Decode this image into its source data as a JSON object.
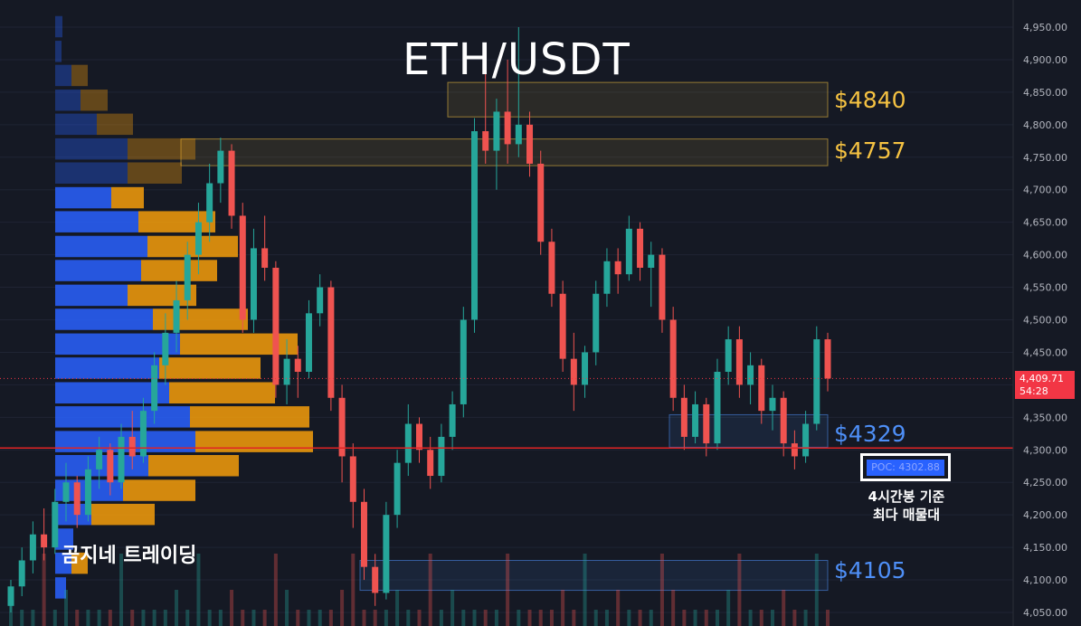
{
  "title": "ETH/USDT",
  "brand": "곰지네 트레이딩",
  "levels": [
    {
      "label": "$4840",
      "color": "#f5c242"
    },
    {
      "label": "$4757",
      "color": "#f5c242"
    },
    {
      "label": "$4329",
      "color": "#4e8ff7"
    },
    {
      "label": "$4105",
      "color": "#4e8ff7"
    }
  ],
  "poc": {
    "label": "POC: 4302.88",
    "note_line1": "4시간봉 기준",
    "note_line2": "최다 매물대"
  },
  "current_price": {
    "value": "4,409.71",
    "countdown": "54:28"
  },
  "colors": {
    "up": "#26a69a",
    "down": "#ef5350",
    "vp_blue": "#2962ff",
    "vp_orange": "#f59e0b",
    "poc_line": "#e02424",
    "background": "#151924"
  },
  "chart_data": {
    "type": "candlestick",
    "title": "ETH/USDT",
    "ylim": [
      4040,
      4980
    ],
    "y_ticks": [
      "4,950.00",
      "4,900.00",
      "4,850.00",
      "4,800.00",
      "4,750.00",
      "4,700.00",
      "4,650.00",
      "4,600.00",
      "4,550.00",
      "4,500.00",
      "4,450.00",
      "4,400.00",
      "4,350.00",
      "4,300.00",
      "4,250.00",
      "4,200.00",
      "4,150.00",
      "4,100.00",
      "4,050.00"
    ],
    "tick_values": [
      4950,
      4900,
      4850,
      4800,
      4750,
      4700,
      4650,
      4600,
      4550,
      4500,
      4450,
      4400,
      4350,
      4300,
      4250,
      4200,
      4150,
      4100,
      4050
    ],
    "candles": [
      [
        4060,
        4100,
        4050,
        4090
      ],
      [
        4090,
        4150,
        4075,
        4130
      ],
      [
        4130,
        4190,
        4110,
        4170
      ],
      [
        4170,
        4210,
        4130,
        4150
      ],
      [
        4150,
        4240,
        4140,
        4220
      ],
      [
        4220,
        4280,
        4190,
        4250
      ],
      [
        4250,
        4260,
        4180,
        4200
      ],
      [
        4200,
        4290,
        4190,
        4270
      ],
      [
        4270,
        4320,
        4240,
        4300
      ],
      [
        4300,
        4310,
        4230,
        4250
      ],
      [
        4250,
        4340,
        4240,
        4320
      ],
      [
        4320,
        4360,
        4270,
        4290
      ],
      [
        4290,
        4380,
        4280,
        4360
      ],
      [
        4360,
        4450,
        4340,
        4430
      ],
      [
        4430,
        4510,
        4400,
        4480
      ],
      [
        4480,
        4560,
        4450,
        4530
      ],
      [
        4530,
        4620,
        4500,
        4600
      ],
      [
        4600,
        4680,
        4570,
        4650
      ],
      [
        4650,
        4740,
        4620,
        4710
      ],
      [
        4710,
        4780,
        4680,
        4760
      ],
      [
        4760,
        4770,
        4640,
        4660
      ],
      [
        4660,
        4680,
        4480,
        4500
      ],
      [
        4500,
        4640,
        4480,
        4610
      ],
      [
        4610,
        4660,
        4560,
        4580
      ],
      [
        4580,
        4590,
        4380,
        4400
      ],
      [
        4400,
        4470,
        4370,
        4440
      ],
      [
        4440,
        4460,
        4380,
        4420
      ],
      [
        4420,
        4530,
        4410,
        4510
      ],
      [
        4510,
        4570,
        4490,
        4550
      ],
      [
        4550,
        4560,
        4360,
        4380
      ],
      [
        4380,
        4400,
        4250,
        4290
      ],
      [
        4290,
        4310,
        4180,
        4220
      ],
      [
        4220,
        4240,
        4100,
        4120
      ],
      [
        4120,
        4140,
        4060,
        4080
      ],
      [
        4080,
        4220,
        4070,
        4200
      ],
      [
        4200,
        4300,
        4180,
        4280
      ],
      [
        4280,
        4370,
        4260,
        4340
      ],
      [
        4340,
        4350,
        4280,
        4300
      ],
      [
        4300,
        4320,
        4240,
        4260
      ],
      [
        4260,
        4340,
        4250,
        4320
      ],
      [
        4320,
        4390,
        4300,
        4370
      ],
      [
        4370,
        4520,
        4350,
        4500
      ],
      [
        4500,
        4810,
        4480,
        4790
      ],
      [
        4790,
        4880,
        4740,
        4760
      ],
      [
        4760,
        4840,
        4700,
        4820
      ],
      [
        4820,
        4900,
        4740,
        4770
      ],
      [
        4770,
        4950,
        4750,
        4800
      ],
      [
        4800,
        4820,
        4720,
        4740
      ],
      [
        4740,
        4760,
        4600,
        4620
      ],
      [
        4620,
        4640,
        4520,
        4540
      ],
      [
        4540,
        4560,
        4420,
        4440
      ],
      [
        4440,
        4480,
        4360,
        4400
      ],
      [
        4400,
        4460,
        4380,
        4450
      ],
      [
        4450,
        4560,
        4430,
        4540
      ],
      [
        4540,
        4610,
        4520,
        4590
      ],
      [
        4590,
        4610,
        4540,
        4570
      ],
      [
        4570,
        4660,
        4560,
        4640
      ],
      [
        4640,
        4650,
        4560,
        4580
      ],
      [
        4580,
        4620,
        4520,
        4600
      ],
      [
        4600,
        4610,
        4480,
        4500
      ],
      [
        4500,
        4520,
        4360,
        4380
      ],
      [
        4380,
        4400,
        4300,
        4320
      ],
      [
        4320,
        4390,
        4310,
        4370
      ],
      [
        4370,
        4380,
        4290,
        4310
      ],
      [
        4310,
        4440,
        4300,
        4420
      ],
      [
        4420,
        4490,
        4400,
        4470
      ],
      [
        4470,
        4490,
        4380,
        4400
      ],
      [
        4400,
        4450,
        4370,
        4430
      ],
      [
        4430,
        4440,
        4340,
        4360
      ],
      [
        4360,
        4400,
        4330,
        4380
      ],
      [
        4380,
        4390,
        4290,
        4310
      ],
      [
        4310,
        4330,
        4270,
        4290
      ],
      [
        4290,
        4360,
        4280,
        4340
      ],
      [
        4340,
        4490,
        4330,
        4470
      ],
      [
        4470,
        4480,
        4390,
        4409.71
      ]
    ],
    "volume_profile": [
      {
        "price": 4950,
        "buy": 8,
        "sell": 0
      },
      {
        "price": 4912,
        "buy": 7,
        "sell": 0
      },
      {
        "price": 4875,
        "buy": 18,
        "sell": 18
      },
      {
        "price": 4837,
        "buy": 28,
        "sell": 30
      },
      {
        "price": 4800,
        "buy": 46,
        "sell": 40
      },
      {
        "price": 4762,
        "buy": 80,
        "sell": 75
      },
      {
        "price": 4725,
        "buy": 80,
        "sell": 60
      },
      {
        "price": 4687,
        "buy": 62,
        "sell": 36
      },
      {
        "price": 4650,
        "buy": 92,
        "sell": 85
      },
      {
        "price": 4612,
        "buy": 102,
        "sell": 100
      },
      {
        "price": 4575,
        "buy": 95,
        "sell": 84
      },
      {
        "price": 4537,
        "buy": 80,
        "sell": 76
      },
      {
        "price": 4500,
        "buy": 108,
        "sell": 105
      },
      {
        "price": 4462,
        "buy": 138,
        "sell": 130
      },
      {
        "price": 4425,
        "buy": 115,
        "sell": 112
      },
      {
        "price": 4387,
        "buy": 126,
        "sell": 117
      },
      {
        "price": 4350,
        "buy": 149,
        "sell": 132
      },
      {
        "price": 4312,
        "buy": 155,
        "sell": 130
      },
      {
        "price": 4275,
        "buy": 103,
        "sell": 100
      },
      {
        "price": 4237,
        "buy": 75,
        "sell": 80
      },
      {
        "price": 4200,
        "buy": 40,
        "sell": 70
      },
      {
        "price": 4162,
        "buy": 20,
        "sell": 0
      },
      {
        "price": 4125,
        "buy": 18,
        "sell": 18
      },
      {
        "price": 4087,
        "buy": 12,
        "sell": 0
      }
    ],
    "zones": [
      {
        "label": "$4840",
        "top": 4865,
        "bottom": 4812,
        "color": "#f5c242"
      },
      {
        "label": "$4757",
        "top": 4778,
        "bottom": 4737,
        "color": "#f5c242"
      },
      {
        "label": "$4329",
        "top": 4354,
        "bottom": 4304,
        "color": "#4e8ff7"
      },
      {
        "label": "$4105",
        "top": 4130,
        "bottom": 4084,
        "color": "#4e8ff7"
      }
    ],
    "poc_price": 4302.88,
    "last_price": 4409.71
  }
}
